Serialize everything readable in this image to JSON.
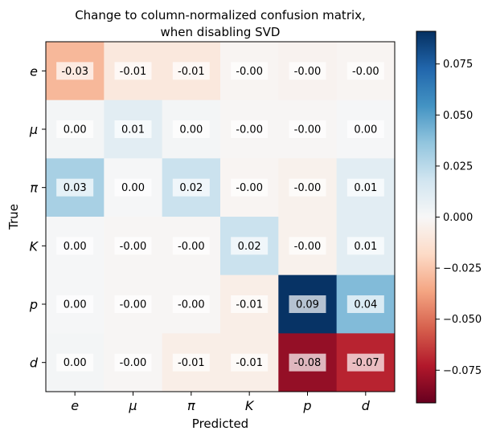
{
  "chart_data": {
    "type": "heatmap",
    "title_lines": [
      "Change to column-normalized confusion matrix,",
      "when disabling SVD"
    ],
    "xlabel": "Predicted",
    "ylabel": "True",
    "x_categories": [
      "e",
      "μ",
      "π",
      "K",
      "p",
      "d"
    ],
    "y_categories": [
      "e",
      "μ",
      "π",
      "K",
      "p",
      "d"
    ],
    "values": [
      [
        -0.03,
        -0.01,
        -0.01,
        -0.002,
        -0.003,
        -0.002
      ],
      [
        0.002,
        0.01,
        0.002,
        -0.001,
        -0.001,
        0.001
      ],
      [
        0.03,
        0.001,
        0.02,
        -0.002,
        -0.004,
        0.01
      ],
      [
        0.001,
        -0.001,
        -0.001,
        0.02,
        -0.004,
        0.01
      ],
      [
        0.001,
        -0.001,
        -0.001,
        -0.006,
        0.09,
        0.04
      ],
      [
        0.002,
        -0.001,
        -0.006,
        -0.006,
        -0.08,
        -0.07
      ]
    ],
    "labels": [
      [
        "-0.03",
        "-0.01",
        "-0.01",
        "-0.00",
        "-0.00",
        "-0.00"
      ],
      [
        "0.00",
        "0.01",
        "0.00",
        "-0.00",
        "-0.00",
        "0.00"
      ],
      [
        "0.03",
        "0.00",
        "0.02",
        "-0.00",
        "-0.00",
        "0.01"
      ],
      [
        "0.00",
        "-0.00",
        "-0.00",
        "0.02",
        "-0.00",
        "0.01"
      ],
      [
        "0.00",
        "-0.00",
        "-0.00",
        "-0.01",
        "0.09",
        "0.04"
      ],
      [
        "0.00",
        "-0.00",
        "-0.01",
        "-0.01",
        "-0.08",
        "-0.07"
      ]
    ],
    "colormap": "RdBu",
    "vmin": -0.091,
    "vmax": 0.091,
    "colorbar_ticks": [
      0.075,
      0.05,
      0.025,
      0.0,
      -0.025,
      -0.05,
      -0.075
    ],
    "colorbar_tick_labels": [
      "0.075",
      "0.050",
      "0.025",
      "0.000",
      "−0.025",
      "−0.050",
      "−0.075"
    ]
  }
}
